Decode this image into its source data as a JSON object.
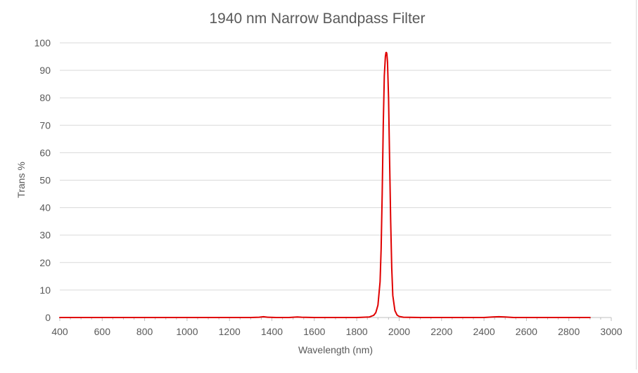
{
  "chart_data": {
    "type": "line",
    "title": "1940 nm Narrow Bandpass Filter",
    "xlabel": "Wavelength (nm)",
    "ylabel": "Trans %",
    "xlim": [
      400,
      3000
    ],
    "ylim": [
      0,
      100
    ],
    "x_ticks": [
      400,
      600,
      800,
      1000,
      1200,
      1400,
      1600,
      1800,
      2000,
      2200,
      2400,
      2600,
      2800,
      3000
    ],
    "y_ticks": [
      0,
      10,
      20,
      30,
      40,
      50,
      60,
      70,
      80,
      90,
      100
    ],
    "grid": "horizontal",
    "legend": "none",
    "series": [
      {
        "color": "#e00000",
        "x": [
          400,
          1000,
          1300,
          1340,
          1360,
          1380,
          1420,
          1480,
          1500,
          1520,
          1540,
          1600,
          1800,
          1860,
          1880,
          1890,
          1900,
          1910,
          1915,
          1920,
          1925,
          1930,
          1935,
          1938,
          1940,
          1942,
          1945,
          1950,
          1955,
          1960,
          1965,
          1970,
          1980,
          1990,
          2000,
          2020,
          2100,
          2400,
          2440,
          2470,
          2500,
          2540,
          2900
        ],
        "y": [
          0,
          0,
          0,
          0.1,
          0.3,
          0.1,
          0,
          0,
          0.1,
          0.2,
          0.1,
          0,
          0,
          0.2,
          0.8,
          1.8,
          4.5,
          13,
          25,
          45,
          70,
          88,
          95,
          96.5,
          96.5,
          96,
          93,
          80,
          57,
          35,
          18,
          8,
          2.5,
          0.9,
          0.4,
          0.1,
          0,
          0,
          0.2,
          0.3,
          0.2,
          0,
          0
        ]
      }
    ]
  }
}
